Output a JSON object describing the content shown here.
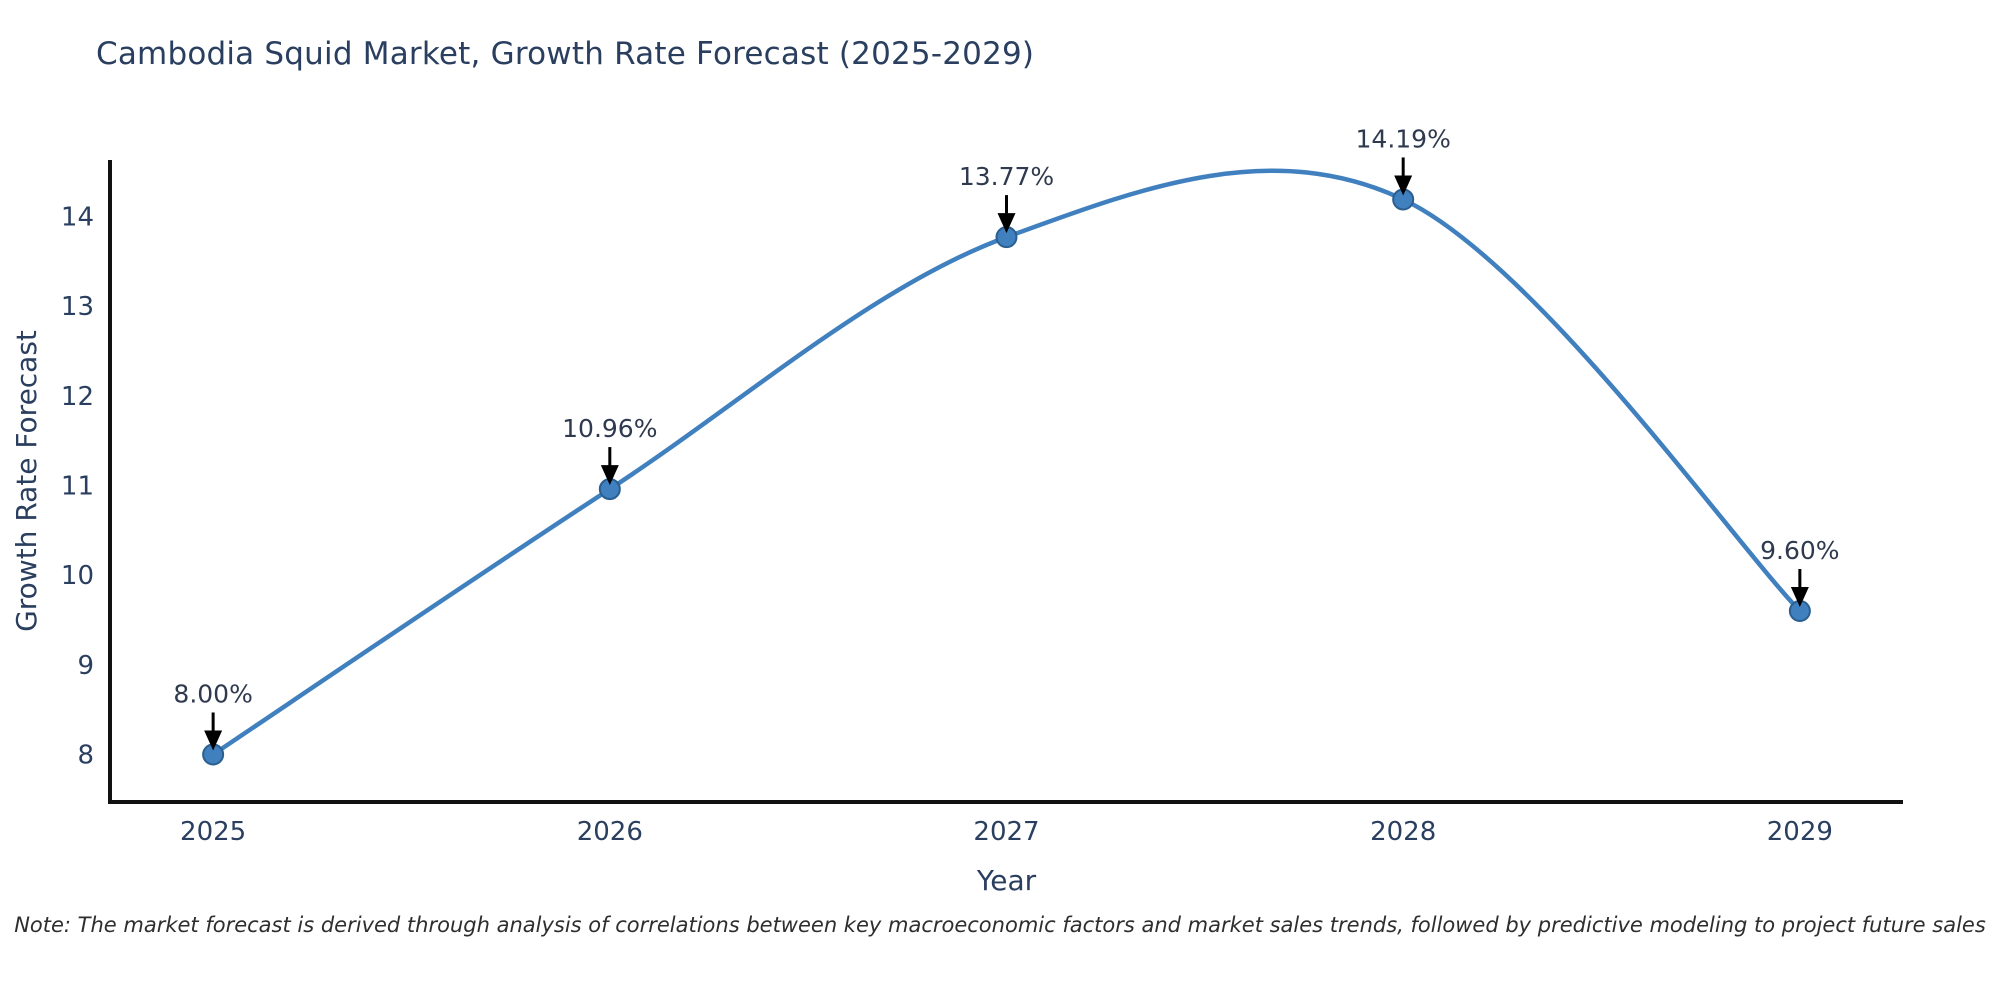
{
  "title": "Cambodia Squid Market, Growth Rate Forecast (2025-2029)",
  "note": "Note: The market forecast is derived through analysis of correlations between key macroeconomic factors and market sales trends, followed by predictive modeling to project future sales",
  "chart_data": {
    "type": "line",
    "line_shape": "spline",
    "title": "Cambodia Squid Market, Growth Rate Forecast (2025-2029)",
    "xlabel": "Year",
    "ylabel": "Growth Rate Forecast",
    "x": [
      2025,
      2026,
      2027,
      2028,
      2029
    ],
    "categories": [
      "2025",
      "2026",
      "2027",
      "2028",
      "2029"
    ],
    "values": [
      8.0,
      10.96,
      13.77,
      14.19,
      9.6
    ],
    "point_labels": [
      "8.00%",
      "10.96%",
      "13.77%",
      "14.19%",
      "9.60%"
    ],
    "yticks": [
      8,
      9,
      10,
      11,
      12,
      13,
      14
    ],
    "ylim": [
      7.47,
      14.63
    ],
    "xlim": [
      2024.74,
      2029.26
    ],
    "grid": false,
    "legend_position": "none",
    "colors": {
      "line": "#4080bf",
      "marker_fill": "#4080bf",
      "marker_edge": "#2a5f8f",
      "axis": "#111111",
      "text": "#2a3f5f",
      "arrow": "#000000"
    }
  }
}
